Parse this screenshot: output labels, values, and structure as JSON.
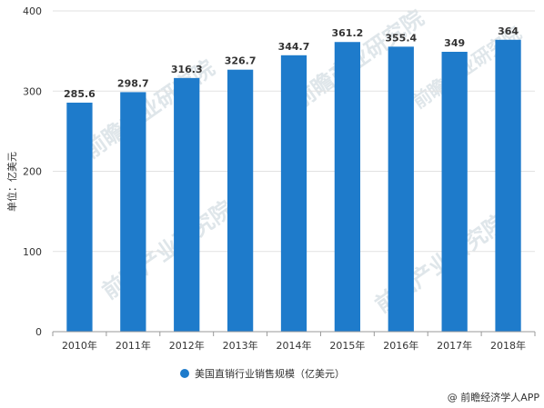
{
  "chart_data": {
    "type": "bar",
    "categories": [
      "2010年",
      "2011年",
      "2012年",
      "2013年",
      "2014年",
      "2015年",
      "2016年",
      "2017年",
      "2018年"
    ],
    "series": [
      {
        "name": "美国直销行业销售规模（亿美元）",
        "values": [
          285.6,
          298.7,
          316.3,
          326.7,
          344.7,
          361.2,
          355.4,
          349,
          364
        ]
      }
    ],
    "data_labels": [
      "285.6",
      "298.7",
      "316.3",
      "326.7",
      "344.7",
      "361.2",
      "355.4",
      "349",
      "364"
    ],
    "ylabel": "单位：亿美元",
    "ylim": [
      0,
      400
    ],
    "yticks": [
      0,
      100,
      200,
      300,
      400
    ],
    "grid": true,
    "legend_position": "bottom",
    "bar_color": "#1e7bcb"
  },
  "watermark": "前瞻产业研究院",
  "source": "@ 前瞻经济学人APP"
}
